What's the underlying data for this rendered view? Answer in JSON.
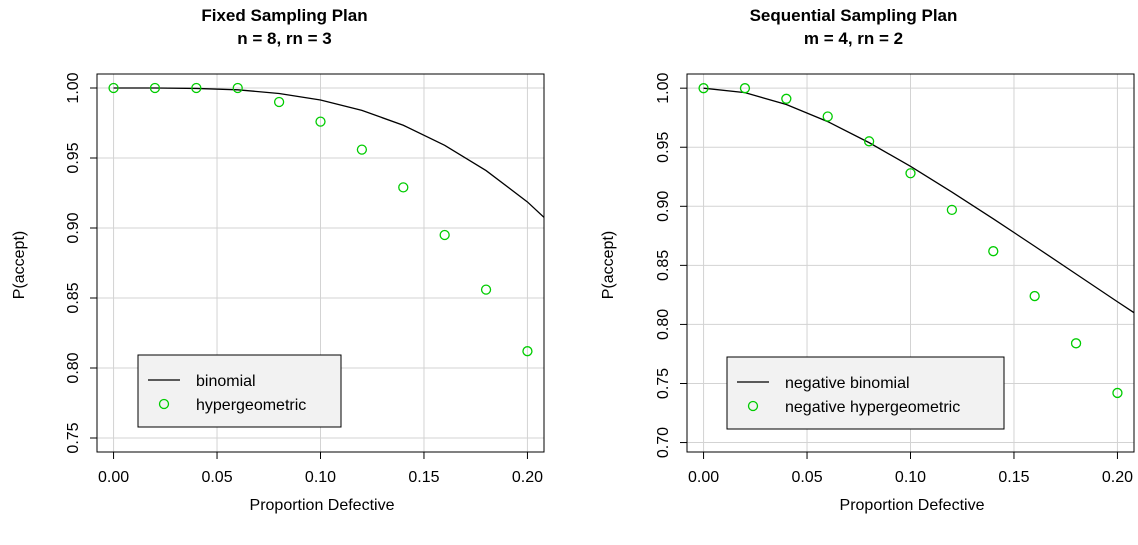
{
  "chart_data": [
    {
      "type": "line",
      "title": "Fixed Sampling Plan",
      "subtitle": "n = 8, rn = 3",
      "xlabel": "Proportion Defective",
      "ylabel": "P(accept)",
      "xlim": [
        -0.008,
        0.208
      ],
      "ylim": [
        0.74,
        1.01
      ],
      "xticks": [
        0.0,
        0.05,
        0.1,
        0.15,
        0.2
      ],
      "xtick_labels": [
        "0.00",
        "0.05",
        "0.10",
        "0.15",
        "0.20"
      ],
      "yticks": [
        0.75,
        0.8,
        0.85,
        0.9,
        0.95,
        1.0
      ],
      "ytick_labels": [
        "0.75",
        "0.80",
        "0.85",
        "0.90",
        "0.95",
        "1.00"
      ],
      "grid": true,
      "legend_position": "bottom-left",
      "series": [
        {
          "name": "binomial",
          "style": "line",
          "color": "#000000",
          "x": [
            0.0,
            0.02,
            0.04,
            0.06,
            0.08,
            0.1,
            0.12,
            0.14,
            0.16,
            0.18,
            0.2,
            0.21
          ],
          "y": [
            1.0,
            0.99998,
            0.9997,
            0.9987,
            0.9961,
            0.9914,
            0.984,
            0.9734,
            0.9591,
            0.941,
            0.9186,
            0.9048
          ]
        },
        {
          "name": "hypergeometric",
          "style": "points",
          "color": "#00cc00",
          "x": [
            0.0,
            0.02,
            0.04,
            0.06,
            0.08,
            0.1,
            0.12,
            0.14,
            0.16,
            0.18,
            0.2
          ],
          "y": [
            1.0,
            1.0,
            1.0,
            1.0,
            0.99,
            0.976,
            0.956,
            0.929,
            0.895,
            0.856,
            0.812
          ]
        }
      ]
    },
    {
      "type": "line",
      "title": "Sequential Sampling Plan",
      "subtitle": "m = 4, rn = 2",
      "xlabel": "Proportion Defective",
      "ylabel": "P(accept)",
      "xlim": [
        -0.008,
        0.208
      ],
      "ylim": [
        0.692,
        1.012
      ],
      "xticks": [
        0.0,
        0.05,
        0.1,
        0.15,
        0.2
      ],
      "xtick_labels": [
        "0.00",
        "0.05",
        "0.10",
        "0.15",
        "0.20"
      ],
      "yticks": [
        0.7,
        0.75,
        0.8,
        0.85,
        0.9,
        0.95,
        1.0
      ],
      "ytick_labels": [
        "0.70",
        "0.75",
        "0.80",
        "0.85",
        "0.90",
        "0.95",
        "1.00"
      ],
      "grid": true,
      "legend_position": "bottom-left",
      "series": [
        {
          "name": "negative binomial",
          "style": "line",
          "color": "#000000",
          "x": [
            0.0,
            0.02,
            0.04,
            0.06,
            0.08,
            0.1,
            0.12,
            0.14,
            0.16,
            0.18,
            0.2,
            0.21
          ],
          "y": [
            1.0,
            0.9962,
            0.9862,
            0.9717,
            0.9539,
            0.9338,
            0.9121,
            0.8894,
            0.8662,
            0.8427,
            0.8192,
            0.8076
          ]
        },
        {
          "name": "negative hypergeometric",
          "style": "points",
          "color": "#00cc00",
          "x": [
            0.0,
            0.02,
            0.04,
            0.06,
            0.08,
            0.1,
            0.12,
            0.14,
            0.16,
            0.18,
            0.2
          ],
          "y": [
            1.0,
            1.0,
            0.991,
            0.976,
            0.955,
            0.928,
            0.897,
            0.862,
            0.824,
            0.784,
            0.742
          ]
        }
      ]
    }
  ]
}
